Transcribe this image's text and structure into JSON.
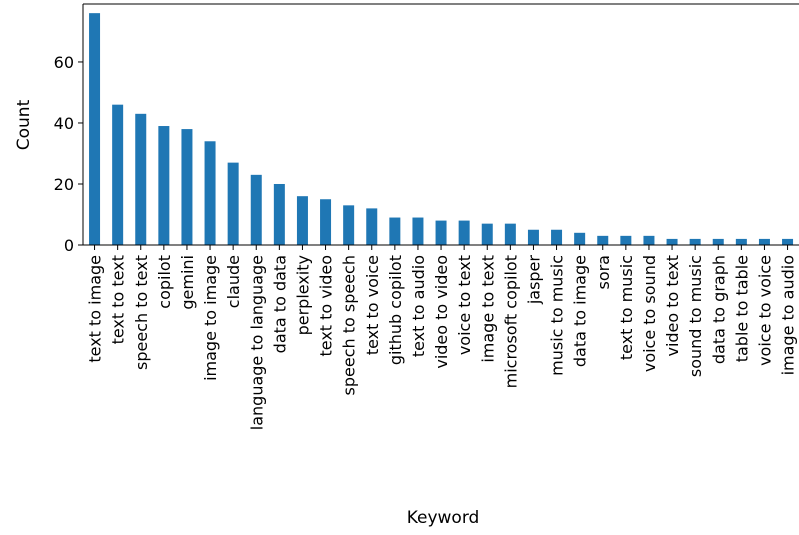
{
  "chart_data": {
    "type": "bar",
    "xlabel": "Keyword",
    "ylabel": "Count",
    "ylim": [
      0,
      79
    ],
    "yticks": [
      0,
      20,
      40,
      60
    ],
    "grid": false,
    "legend": "none",
    "bar_color": "#1f77b4",
    "categories": [
      "text to image",
      "text to text",
      "speech to text",
      "copilot",
      "gemini",
      "image to image",
      "claude",
      "language to language",
      "data to data",
      "perplexity",
      "text to video",
      "speech to speech",
      "text to voice",
      "github copilot",
      "text to audio",
      "video to video",
      "voice to text",
      "image to text",
      "microsoft copilot",
      "jasper",
      "music to music",
      "data to image",
      "sora",
      "text to music",
      "voice to sound",
      "video to text",
      "sound to music",
      "data to graph",
      "table to table",
      "voice to voice",
      "image to audio"
    ],
    "values": [
      76,
      46,
      43,
      39,
      38,
      34,
      27,
      23,
      20,
      16,
      15,
      13,
      12,
      9,
      9,
      8,
      8,
      7,
      7,
      5,
      5,
      4,
      3,
      3,
      3,
      2,
      2,
      2,
      2,
      2,
      2
    ]
  }
}
